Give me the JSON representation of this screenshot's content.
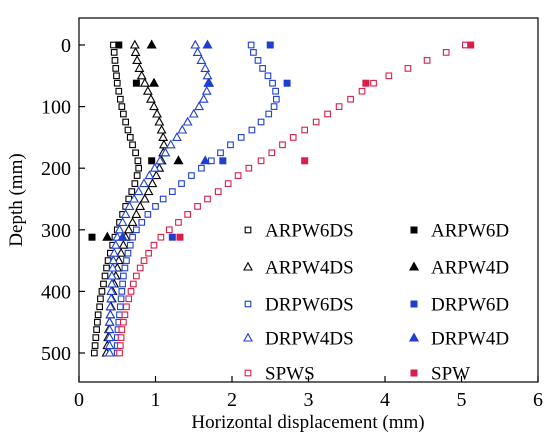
{
  "chart_data": {
    "type": "scatter",
    "xlabel": "Horizontal displacement (mm)",
    "ylabel": "Depth (mm)",
    "xlim": [
      0,
      6
    ],
    "ylim": [
      0,
      500
    ],
    "y_axis_inverted": true,
    "x_ticks": [
      0,
      1,
      2,
      3,
      4,
      5,
      6
    ],
    "y_ticks": [
      0,
      100,
      200,
      300,
      400,
      500
    ],
    "grid": false,
    "legend_position": "lower-right",
    "series": [
      {
        "name": "ARPW6DS",
        "marker": "square-open",
        "color": "#000000",
        "points": [
          [
            0.45,
            0
          ],
          [
            0.46,
            12
          ],
          [
            0.47,
            25
          ],
          [
            0.48,
            38
          ],
          [
            0.49,
            50
          ],
          [
            0.5,
            62
          ],
          [
            0.52,
            75
          ],
          [
            0.54,
            88
          ],
          [
            0.56,
            100
          ],
          [
            0.58,
            112
          ],
          [
            0.61,
            125
          ],
          [
            0.64,
            138
          ],
          [
            0.67,
            150
          ],
          [
            0.7,
            162
          ],
          [
            0.74,
            175
          ],
          [
            0.77,
            188
          ],
          [
            0.78,
            200
          ],
          [
            0.76,
            212
          ],
          [
            0.73,
            225
          ],
          [
            0.69,
            238
          ],
          [
            0.65,
            250
          ],
          [
            0.61,
            262
          ],
          [
            0.57,
            275
          ],
          [
            0.53,
            288
          ],
          [
            0.5,
            300
          ],
          [
            0.47,
            312
          ],
          [
            0.44,
            325
          ],
          [
            0.41,
            338
          ],
          [
            0.38,
            350
          ],
          [
            0.36,
            362
          ],
          [
            0.34,
            375
          ],
          [
            0.32,
            388
          ],
          [
            0.3,
            400
          ],
          [
            0.28,
            412
          ],
          [
            0.27,
            425
          ],
          [
            0.25,
            438
          ],
          [
            0.24,
            450
          ],
          [
            0.23,
            462
          ],
          [
            0.22,
            475
          ],
          [
            0.21,
            488
          ],
          [
            0.2,
            500
          ]
        ]
      },
      {
        "name": "ARPW6D",
        "marker": "square-filled",
        "color": "#000000",
        "points": [
          [
            0.52,
            0
          ],
          [
            0.75,
            62
          ],
          [
            0.95,
            188
          ],
          [
            0.17,
            312
          ]
        ]
      },
      {
        "name": "ARPW4DS",
        "marker": "triangle-open",
        "color": "#000000",
        "points": [
          [
            0.73,
            0
          ],
          [
            0.74,
            12
          ],
          [
            0.76,
            25
          ],
          [
            0.79,
            38
          ],
          [
            0.82,
            50
          ],
          [
            0.86,
            62
          ],
          [
            0.9,
            75
          ],
          [
            0.94,
            88
          ],
          [
            0.98,
            100
          ],
          [
            1.02,
            112
          ],
          [
            1.05,
            125
          ],
          [
            1.08,
            138
          ],
          [
            1.1,
            150
          ],
          [
            1.11,
            162
          ],
          [
            1.1,
            175
          ],
          [
            1.08,
            188
          ],
          [
            1.05,
            200
          ],
          [
            1.01,
            212
          ],
          [
            0.96,
            225
          ],
          [
            0.91,
            238
          ],
          [
            0.86,
            250
          ],
          [
            0.8,
            262
          ],
          [
            0.75,
            275
          ],
          [
            0.7,
            288
          ],
          [
            0.65,
            300
          ],
          [
            0.61,
            312
          ],
          [
            0.58,
            325
          ],
          [
            0.55,
            338
          ],
          [
            0.52,
            350
          ],
          [
            0.5,
            362
          ],
          [
            0.48,
            375
          ],
          [
            0.46,
            388
          ],
          [
            0.44,
            400
          ],
          [
            0.43,
            412
          ],
          [
            0.42,
            425
          ],
          [
            0.41,
            438
          ],
          [
            0.4,
            450
          ],
          [
            0.39,
            462
          ],
          [
            0.38,
            475
          ],
          [
            0.37,
            488
          ],
          [
            0.36,
            500
          ]
        ]
      },
      {
        "name": "ARPW4D",
        "marker": "triangle-filled",
        "color": "#000000",
        "points": [
          [
            0.95,
            0
          ],
          [
            0.98,
            62
          ],
          [
            1.3,
            188
          ],
          [
            0.37,
            312
          ]
        ]
      },
      {
        "name": "DRPW6DS",
        "marker": "square-open",
        "color": "#1f3fd0",
        "points": [
          [
            2.25,
            0
          ],
          [
            2.28,
            12
          ],
          [
            2.34,
            25
          ],
          [
            2.4,
            38
          ],
          [
            2.47,
            50
          ],
          [
            2.53,
            62
          ],
          [
            2.57,
            75
          ],
          [
            2.58,
            88
          ],
          [
            2.55,
            100
          ],
          [
            2.48,
            112
          ],
          [
            2.38,
            125
          ],
          [
            2.26,
            138
          ],
          [
            2.12,
            150
          ],
          [
            1.98,
            162
          ],
          [
            1.85,
            175
          ],
          [
            1.73,
            188
          ],
          [
            1.6,
            200
          ],
          [
            1.47,
            212
          ],
          [
            1.34,
            225
          ],
          [
            1.22,
            238
          ],
          [
            1.1,
            250
          ],
          [
            1.0,
            262
          ],
          [
            0.9,
            275
          ],
          [
            0.82,
            288
          ],
          [
            0.75,
            300
          ],
          [
            0.7,
            312
          ],
          [
            0.67,
            325
          ],
          [
            0.64,
            338
          ],
          [
            0.62,
            350
          ],
          [
            0.6,
            362
          ],
          [
            0.58,
            375
          ],
          [
            0.57,
            388
          ],
          [
            0.56,
            400
          ],
          [
            0.55,
            412
          ],
          [
            0.54,
            425
          ],
          [
            0.53,
            438
          ],
          [
            0.52,
            450
          ],
          [
            0.51,
            462
          ],
          [
            0.5,
            475
          ],
          [
            0.5,
            488
          ],
          [
            0.5,
            500
          ]
        ]
      },
      {
        "name": "DRPW6D",
        "marker": "square-filled",
        "color": "#1f3fd0",
        "points": [
          [
            2.5,
            0
          ],
          [
            2.72,
            62
          ],
          [
            1.88,
            188
          ],
          [
            1.22,
            312
          ]
        ]
      },
      {
        "name": "DRPW4DS",
        "marker": "triangle-open",
        "color": "#1f3fd0",
        "points": [
          [
            1.52,
            0
          ],
          [
            1.55,
            12
          ],
          [
            1.6,
            25
          ],
          [
            1.65,
            38
          ],
          [
            1.68,
            50
          ],
          [
            1.69,
            62
          ],
          [
            1.67,
            75
          ],
          [
            1.63,
            88
          ],
          [
            1.57,
            100
          ],
          [
            1.5,
            112
          ],
          [
            1.42,
            125
          ],
          [
            1.35,
            138
          ],
          [
            1.28,
            150
          ],
          [
            1.2,
            162
          ],
          [
            1.13,
            175
          ],
          [
            1.06,
            188
          ],
          [
            0.99,
            200
          ],
          [
            0.92,
            212
          ],
          [
            0.85,
            225
          ],
          [
            0.78,
            238
          ],
          [
            0.72,
            250
          ],
          [
            0.66,
            262
          ],
          [
            0.61,
            275
          ],
          [
            0.57,
            288
          ],
          [
            0.53,
            300
          ],
          [
            0.5,
            312
          ],
          [
            0.48,
            325
          ],
          [
            0.46,
            338
          ],
          [
            0.45,
            350
          ],
          [
            0.44,
            362
          ],
          [
            0.43,
            375
          ],
          [
            0.43,
            388
          ],
          [
            0.42,
            400
          ],
          [
            0.42,
            412
          ],
          [
            0.41,
            425
          ],
          [
            0.41,
            438
          ],
          [
            0.4,
            450
          ],
          [
            0.4,
            462
          ],
          [
            0.4,
            475
          ],
          [
            0.4,
            488
          ],
          [
            0.4,
            500
          ]
        ]
      },
      {
        "name": "DRPW4D",
        "marker": "triangle-filled",
        "color": "#1f3fd0",
        "points": [
          [
            1.68,
            0
          ],
          [
            1.7,
            62
          ],
          [
            1.65,
            188
          ],
          [
            0.57,
            312
          ]
        ]
      },
      {
        "name": "SPWS",
        "marker": "square-open",
        "color": "#d81e4a",
        "points": [
          [
            5.05,
            0
          ],
          [
            4.8,
            12
          ],
          [
            4.55,
            25
          ],
          [
            4.3,
            38
          ],
          [
            4.05,
            50
          ],
          [
            3.85,
            62
          ],
          [
            3.7,
            75
          ],
          [
            3.55,
            88
          ],
          [
            3.4,
            100
          ],
          [
            3.25,
            112
          ],
          [
            3.1,
            125
          ],
          [
            2.95,
            138
          ],
          [
            2.8,
            150
          ],
          [
            2.66,
            162
          ],
          [
            2.52,
            175
          ],
          [
            2.38,
            188
          ],
          [
            2.22,
            200
          ],
          [
            2.08,
            212
          ],
          [
            1.95,
            225
          ],
          [
            1.82,
            238
          ],
          [
            1.68,
            250
          ],
          [
            1.55,
            262
          ],
          [
            1.42,
            275
          ],
          [
            1.3,
            288
          ],
          [
            1.18,
            300
          ],
          [
            1.07,
            312
          ],
          [
            0.98,
            325
          ],
          [
            0.91,
            338
          ],
          [
            0.85,
            350
          ],
          [
            0.8,
            362
          ],
          [
            0.75,
            375
          ],
          [
            0.71,
            388
          ],
          [
            0.68,
            400
          ],
          [
            0.65,
            412
          ],
          [
            0.62,
            425
          ],
          [
            0.6,
            438
          ],
          [
            0.58,
            450
          ],
          [
            0.56,
            462
          ],
          [
            0.55,
            475
          ],
          [
            0.54,
            488
          ],
          [
            0.53,
            500
          ]
        ]
      },
      {
        "name": "SPW",
        "marker": "square-filled",
        "color": "#d81e4a",
        "points": [
          [
            5.12,
            0
          ],
          [
            3.75,
            62
          ],
          [
            2.95,
            188
          ],
          [
            1.32,
            312
          ]
        ]
      }
    ]
  }
}
